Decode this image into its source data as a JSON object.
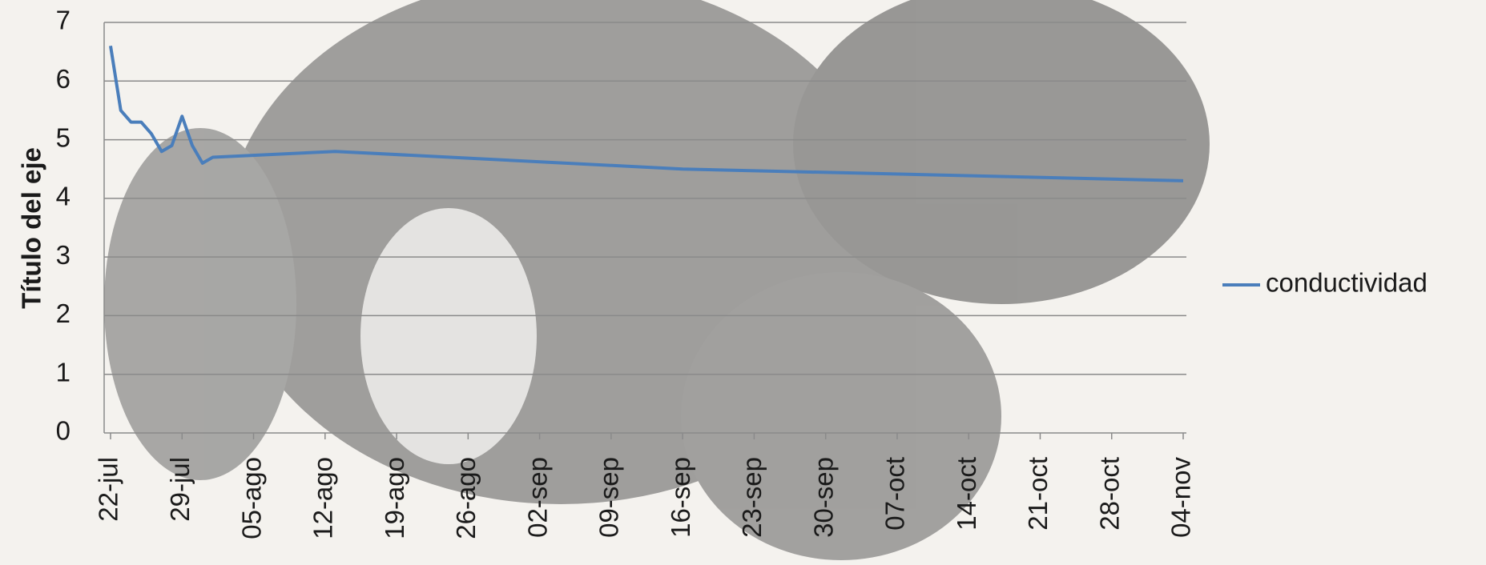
{
  "chart_data": {
    "type": "line",
    "y_label": "Título del eje",
    "x": [
      "22-jul",
      "23-jul",
      "24-jul",
      "25-jul",
      "26-jul",
      "27-jul",
      "28-jul",
      "29-jul",
      "30-jul",
      "31-jul",
      "01-ago",
      "13-ago",
      "16-sep",
      "04-nov"
    ],
    "series": [
      {
        "name": "conductividad",
        "color": "#4a7ebb",
        "values": [
          6.6,
          5.5,
          5.3,
          5.3,
          5.1,
          4.8,
          4.9,
          5.4,
          4.9,
          4.6,
          4.7,
          4.8,
          4.5,
          4.3
        ]
      }
    ],
    "xlim": [
      "22-jul",
      "04-nov"
    ],
    "xticks": [
      "22-jul",
      "29-jul",
      "05-ago",
      "12-ago",
      "19-ago",
      "26-ago",
      "02-sep",
      "09-sep",
      "16-sep",
      "23-sep",
      "30-sep",
      "07-oct",
      "14-oct",
      "21-oct",
      "28-oct",
      "04-nov"
    ],
    "ylim": [
      0,
      7
    ],
    "yticks": [
      0,
      1,
      2,
      3,
      4,
      5,
      6,
      7
    ],
    "grid": true,
    "legend": "right"
  }
}
